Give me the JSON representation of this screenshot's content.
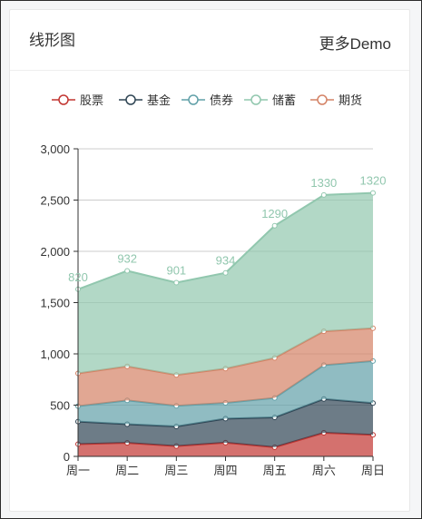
{
  "card": {
    "title": "线形图",
    "more_link": "更多Demo"
  },
  "chart_data": {
    "type": "area",
    "stacked": true,
    "categories": [
      "周一",
      "周二",
      "周三",
      "周四",
      "周五",
      "周六",
      "周日"
    ],
    "ylim": [
      0,
      3000
    ],
    "yticks": [
      0,
      500,
      1000,
      1500,
      2000,
      2500,
      3000
    ],
    "ytick_labels": [
      "0",
      "500",
      "1,000",
      "1,500",
      "2,000",
      "2,500",
      "3,000"
    ],
    "grid": true,
    "legend_position": "top-center",
    "top_labels": [
      "820",
      "932",
      "901",
      "934",
      "1290",
      "1330",
      "1320"
    ],
    "series": [
      {
        "name": "股票",
        "color": "#c23531",
        "values": [
          120,
          132,
          101,
          134,
          90,
          230,
          210
        ]
      },
      {
        "name": "基金",
        "color": "#2f4554",
        "values": [
          220,
          182,
          191,
          234,
          290,
          330,
          310
        ]
      },
      {
        "name": "债券",
        "color": "#61a0a8",
        "values": [
          150,
          232,
          201,
          154,
          190,
          330,
          410
        ]
      },
      {
        "name": "储蓄",
        "color": "#91c7ae",
        "values": [
          820,
          932,
          901,
          934,
          1290,
          1330,
          1320
        ]
      },
      {
        "name": "期货",
        "color": "#d48265",
        "values": [
          320,
          332,
          301,
          334,
          390,
          330,
          320
        ]
      }
    ],
    "stack_order": [
      "股票",
      "基金",
      "债券",
      "期货",
      "储蓄"
    ]
  }
}
